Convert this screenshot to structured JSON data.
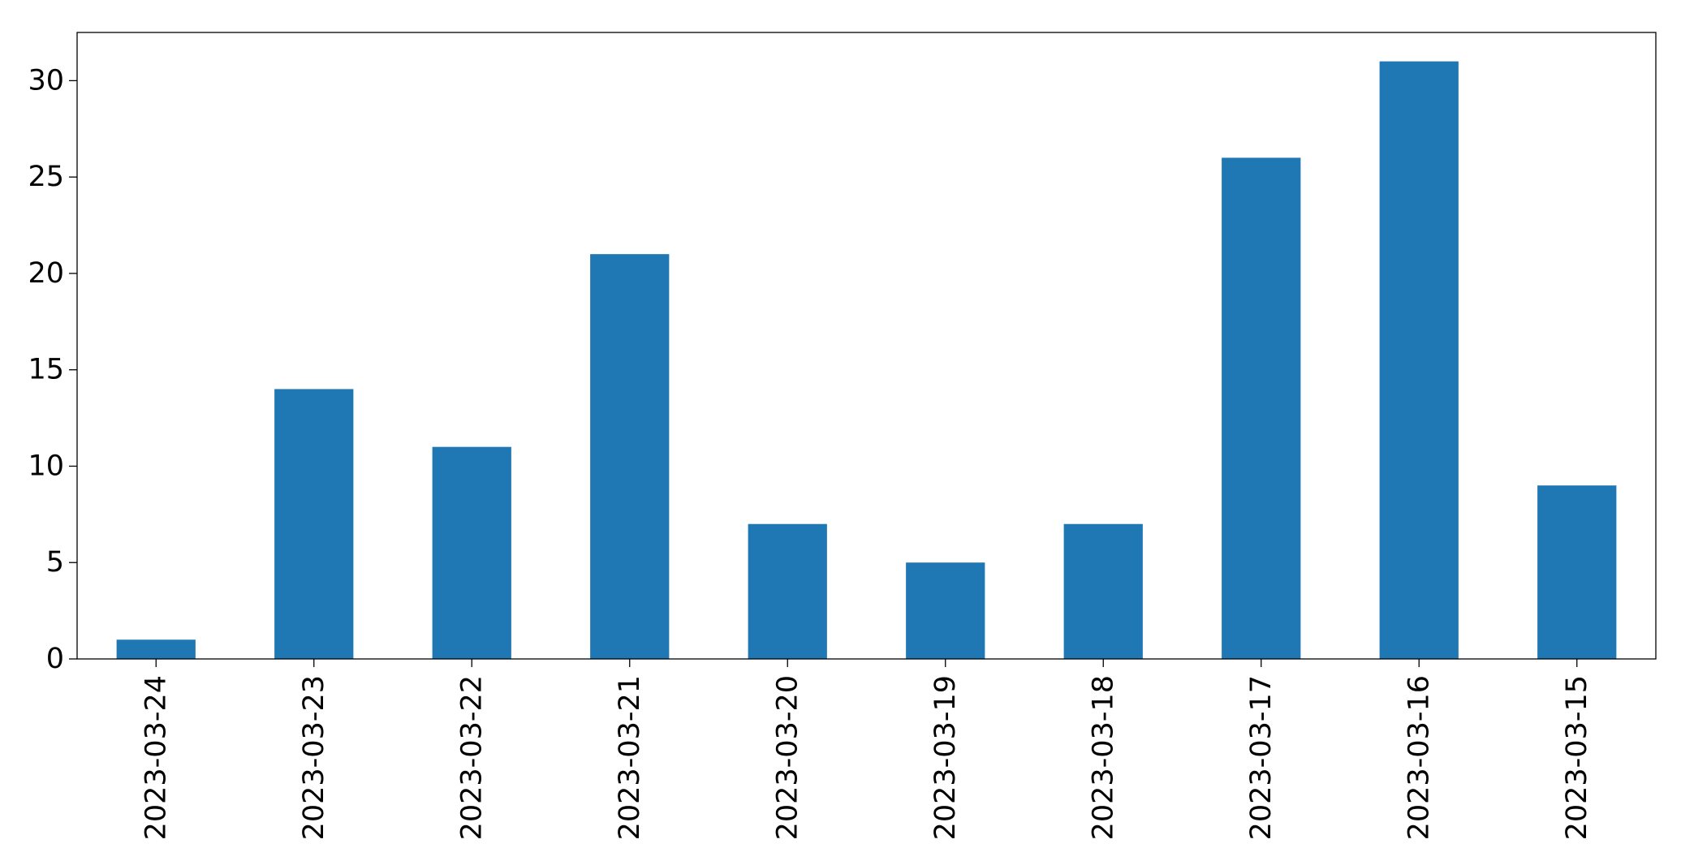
{
  "chart_data": {
    "type": "bar",
    "categories": [
      "2023-03-24",
      "2023-03-23",
      "2023-03-22",
      "2023-03-21",
      "2023-03-20",
      "2023-03-19",
      "2023-03-18",
      "2023-03-17",
      "2023-03-16",
      "2023-03-15"
    ],
    "values": [
      1,
      14,
      11,
      21,
      7,
      5,
      7,
      26,
      31,
      9
    ],
    "ylim": [
      0,
      32.5
    ],
    "yticks": [
      0,
      5,
      10,
      15,
      20,
      25,
      30
    ],
    "title": "",
    "xlabel": "",
    "ylabel": "",
    "grid": false,
    "legend": false,
    "bar_color": "#1f77b4"
  }
}
